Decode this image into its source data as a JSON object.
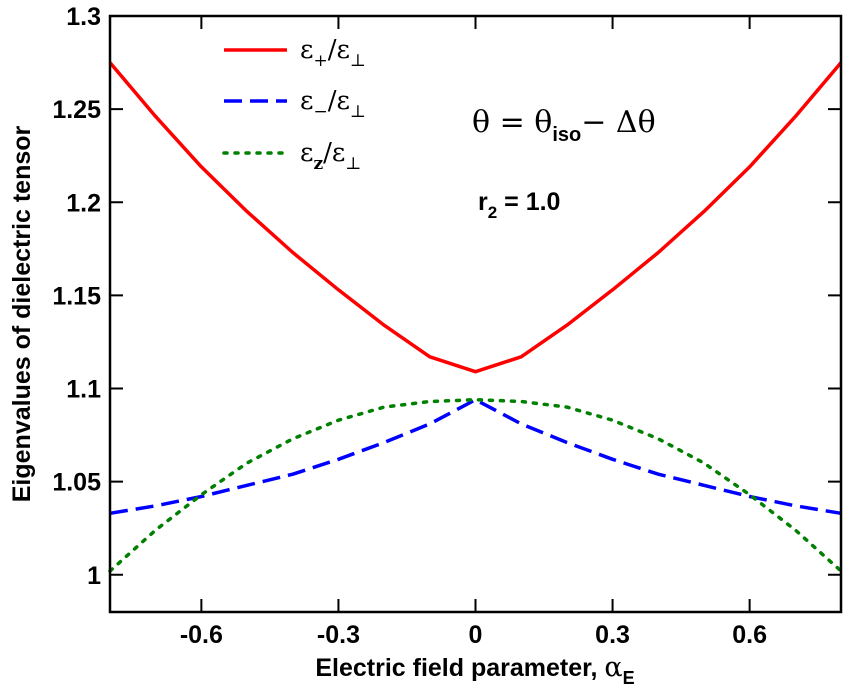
{
  "chart_data": {
    "type": "line",
    "title": "",
    "xlabel_main": "Electric field parameter, ",
    "xlabel_symbol": "α",
    "xlabel_sub": "E",
    "ylabel": "Eigenvalues of dielectric tensor",
    "xlim": [
      -0.8,
      0.8
    ],
    "ylim": [
      0.98,
      1.3
    ],
    "xticks": [
      -0.6,
      -0.3,
      0,
      0.3,
      0.6
    ],
    "xtick_labels": [
      "-0.6",
      "-0.3",
      "0",
      "0.3",
      "0.6"
    ],
    "yticks": [
      1.0,
      1.05,
      1.1,
      1.15,
      1.2,
      1.25,
      1.3
    ],
    "ytick_labels": [
      "1",
      "1.05",
      "1.1",
      "1.15",
      "1.2",
      "1.25",
      "1.3"
    ],
    "grid": false,
    "legend_position": "top-left",
    "x": [
      -0.8,
      -0.7,
      -0.6,
      -0.5,
      -0.4,
      -0.3,
      -0.2,
      -0.1,
      0.0,
      0.1,
      0.2,
      0.3,
      0.4,
      0.5,
      0.6,
      0.7,
      0.8
    ],
    "series": [
      {
        "name": "eps_plus",
        "label_main": "ε",
        "label_sub": "+",
        "label_mid": "/ε",
        "label_sub2": "⊥",
        "color": "#ff0000",
        "dash": "solid",
        "values": [
          1.275,
          1.246,
          1.219,
          1.195,
          1.173,
          1.153,
          1.134,
          1.117,
          1.109,
          1.117,
          1.134,
          1.153,
          1.173,
          1.195,
          1.219,
          1.246,
          1.275
        ]
      },
      {
        "name": "eps_minus",
        "label_main": "ε",
        "label_sub": "−",
        "label_mid": "/ε",
        "label_sub2": "⊥",
        "color": "#0000ff",
        "dash": "dashed",
        "values": [
          1.033,
          1.037,
          1.042,
          1.048,
          1.054,
          1.062,
          1.071,
          1.081,
          1.094,
          1.081,
          1.071,
          1.062,
          1.054,
          1.048,
          1.042,
          1.037,
          1.033
        ]
      },
      {
        "name": "eps_z",
        "label_main": "ε",
        "label_sub": "z",
        "label_mid": "/ε",
        "label_sub2": "⊥",
        "color": "#008000",
        "dash": "dotted",
        "values": [
          1.002,
          1.024,
          1.043,
          1.06,
          1.073,
          1.083,
          1.09,
          1.093,
          1.094,
          1.093,
          1.09,
          1.083,
          1.073,
          1.06,
          1.043,
          1.024,
          1.002
        ]
      }
    ],
    "annotations": {
      "theta": {
        "t1": "θ = θ",
        "sub": "iso",
        "t2": "− Δθ"
      },
      "r2": {
        "t1": "r",
        "sub": "2",
        "t2": " = 1.0"
      }
    }
  }
}
